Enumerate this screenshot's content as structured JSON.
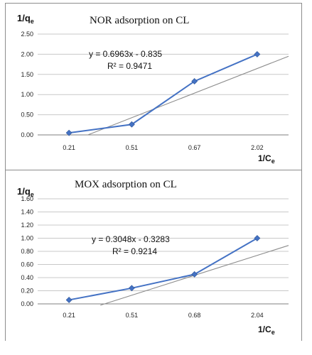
{
  "chart_data": [
    {
      "type": "line",
      "title": "NOR adsorption on CL",
      "ylabel": "1/q",
      "ylabel_sub": "e",
      "xlabel": "1/C",
      "xlabel_sub": "e",
      "categories": [
        "0.21",
        "0.51",
        "0.67",
        "2.02"
      ],
      "yticks": [
        "0.00",
        "0.50",
        "1.00",
        "1.50",
        "2.00",
        "2.50"
      ],
      "ylim": [
        0,
        2.5
      ],
      "grid": true,
      "series": [
        {
          "values": [
            0.05,
            0.26,
            1.33,
            2.0
          ],
          "color": "#4472c4"
        }
      ],
      "trendline": {
        "start": [
          0.8,
          0.0
        ],
        "end": [
          4.0,
          1.95
        ],
        "color": "#8c8c8c"
      },
      "equation": "y = 0.6963x - 0.835",
      "r2": "R² = 0.9471"
    },
    {
      "type": "line",
      "title": "MOX adsorption on CL",
      "ylabel": "1/q",
      "ylabel_sub": "e",
      "xlabel": "1/C",
      "xlabel_sub": "e",
      "categories": [
        "0.21",
        "0.51",
        "0.68",
        "2.04"
      ],
      "yticks": [
        "0.00",
        "0.20",
        "0.40",
        "0.60",
        "0.80",
        "1.00",
        "1.20",
        "1.40",
        "1.60"
      ],
      "ylim": [
        0,
        1.6
      ],
      "grid": true,
      "series": [
        {
          "values": [
            0.06,
            0.24,
            0.45,
            1.0
          ],
          "color": "#4472c4"
        }
      ],
      "trendline": {
        "start": [
          1.0,
          -0.02
        ],
        "end": [
          4.0,
          0.89
        ],
        "color": "#8c8c8c"
      },
      "equation": "y = 0.3048x - 0.3283",
      "r2": "R² = 0.9214"
    }
  ]
}
